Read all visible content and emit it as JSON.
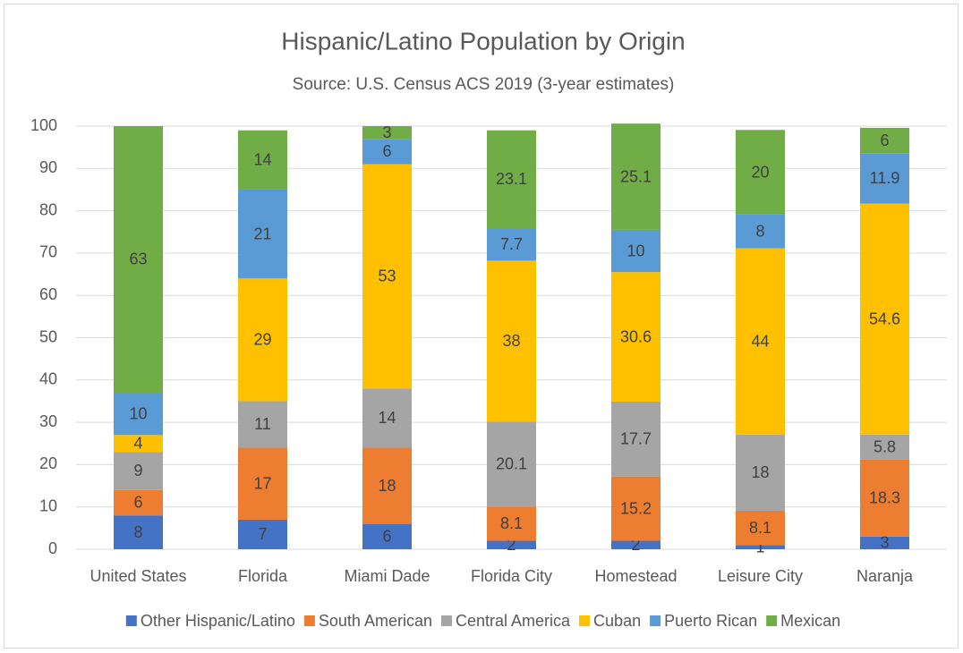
{
  "chart_data": {
    "type": "stacked_bar",
    "title": "Hispanic/Latino Population by Origin",
    "subtitle": "Source: U.S. Census ACS 2019 (3-year estimates)",
    "categories": [
      "United States",
      "Florida",
      "Miami Dade",
      "Florida City",
      "Homestead",
      "Leisure City",
      "Naranja"
    ],
    "series": [
      {
        "name": "Other Hispanic/Latino",
        "color": "#4472c4",
        "values": [
          8,
          7,
          6,
          2,
          2,
          1,
          3
        ]
      },
      {
        "name": "South American",
        "color": "#ed7d31",
        "values": [
          6,
          17,
          18,
          8.1,
          15.2,
          8.1,
          18.3
        ]
      },
      {
        "name": "Central America",
        "color": "#a5a5a5",
        "values": [
          9,
          11,
          14,
          20.1,
          17.7,
          18,
          5.8
        ]
      },
      {
        "name": "Cuban",
        "color": "#ffc000",
        "values": [
          4,
          29,
          53,
          38,
          30.6,
          44,
          54.6
        ]
      },
      {
        "name": "Puerto Rican",
        "color": "#5b9bd5",
        "values": [
          10,
          21,
          6,
          7.7,
          10,
          8,
          11.9
        ]
      },
      {
        "name": "Mexican",
        "color": "#70ad47",
        "values": [
          63,
          14,
          3,
          23.1,
          25.1,
          20,
          6
        ]
      }
    ],
    "ylim": [
      0,
      100
    ],
    "yticks": [
      0,
      10,
      20,
      30,
      40,
      50,
      60,
      70,
      80,
      90,
      100
    ],
    "grid": true,
    "legend": "bottom"
  }
}
